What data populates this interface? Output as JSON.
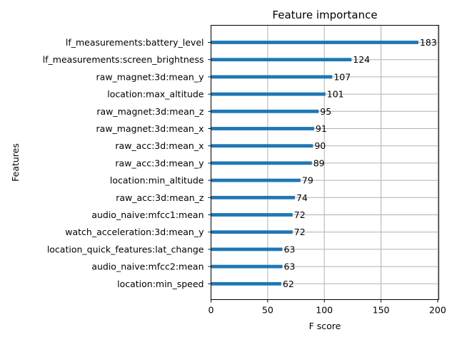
{
  "chart_data": {
    "type": "bar",
    "orientation": "horizontal",
    "title": "Feature importance",
    "xlabel": "F score",
    "ylabel": "Features",
    "xlim": [
      0,
      201
    ],
    "xticks": [
      0,
      50,
      100,
      150,
      200
    ],
    "grid": true,
    "bar_color": "#1f77b4",
    "categories": [
      "lf_measurements:battery_level",
      "lf_measurements:screen_brightness",
      "raw_magnet:3d:mean_y",
      "location:max_altitude",
      "raw_magnet:3d:mean_z",
      "raw_magnet:3d:mean_x",
      "raw_acc:3d:mean_x",
      "raw_acc:3d:mean_y",
      "location:min_altitude",
      "raw_acc:3d:mean_z",
      "audio_naive:mfcc1:mean",
      "watch_acceleration:3d:mean_y",
      "location_quick_features:lat_change",
      "audio_naive:mfcc2:mean",
      "location:min_speed"
    ],
    "values": [
      183,
      124,
      107,
      101,
      95,
      91,
      90,
      89,
      79,
      74,
      72,
      72,
      63,
      63,
      62
    ]
  }
}
